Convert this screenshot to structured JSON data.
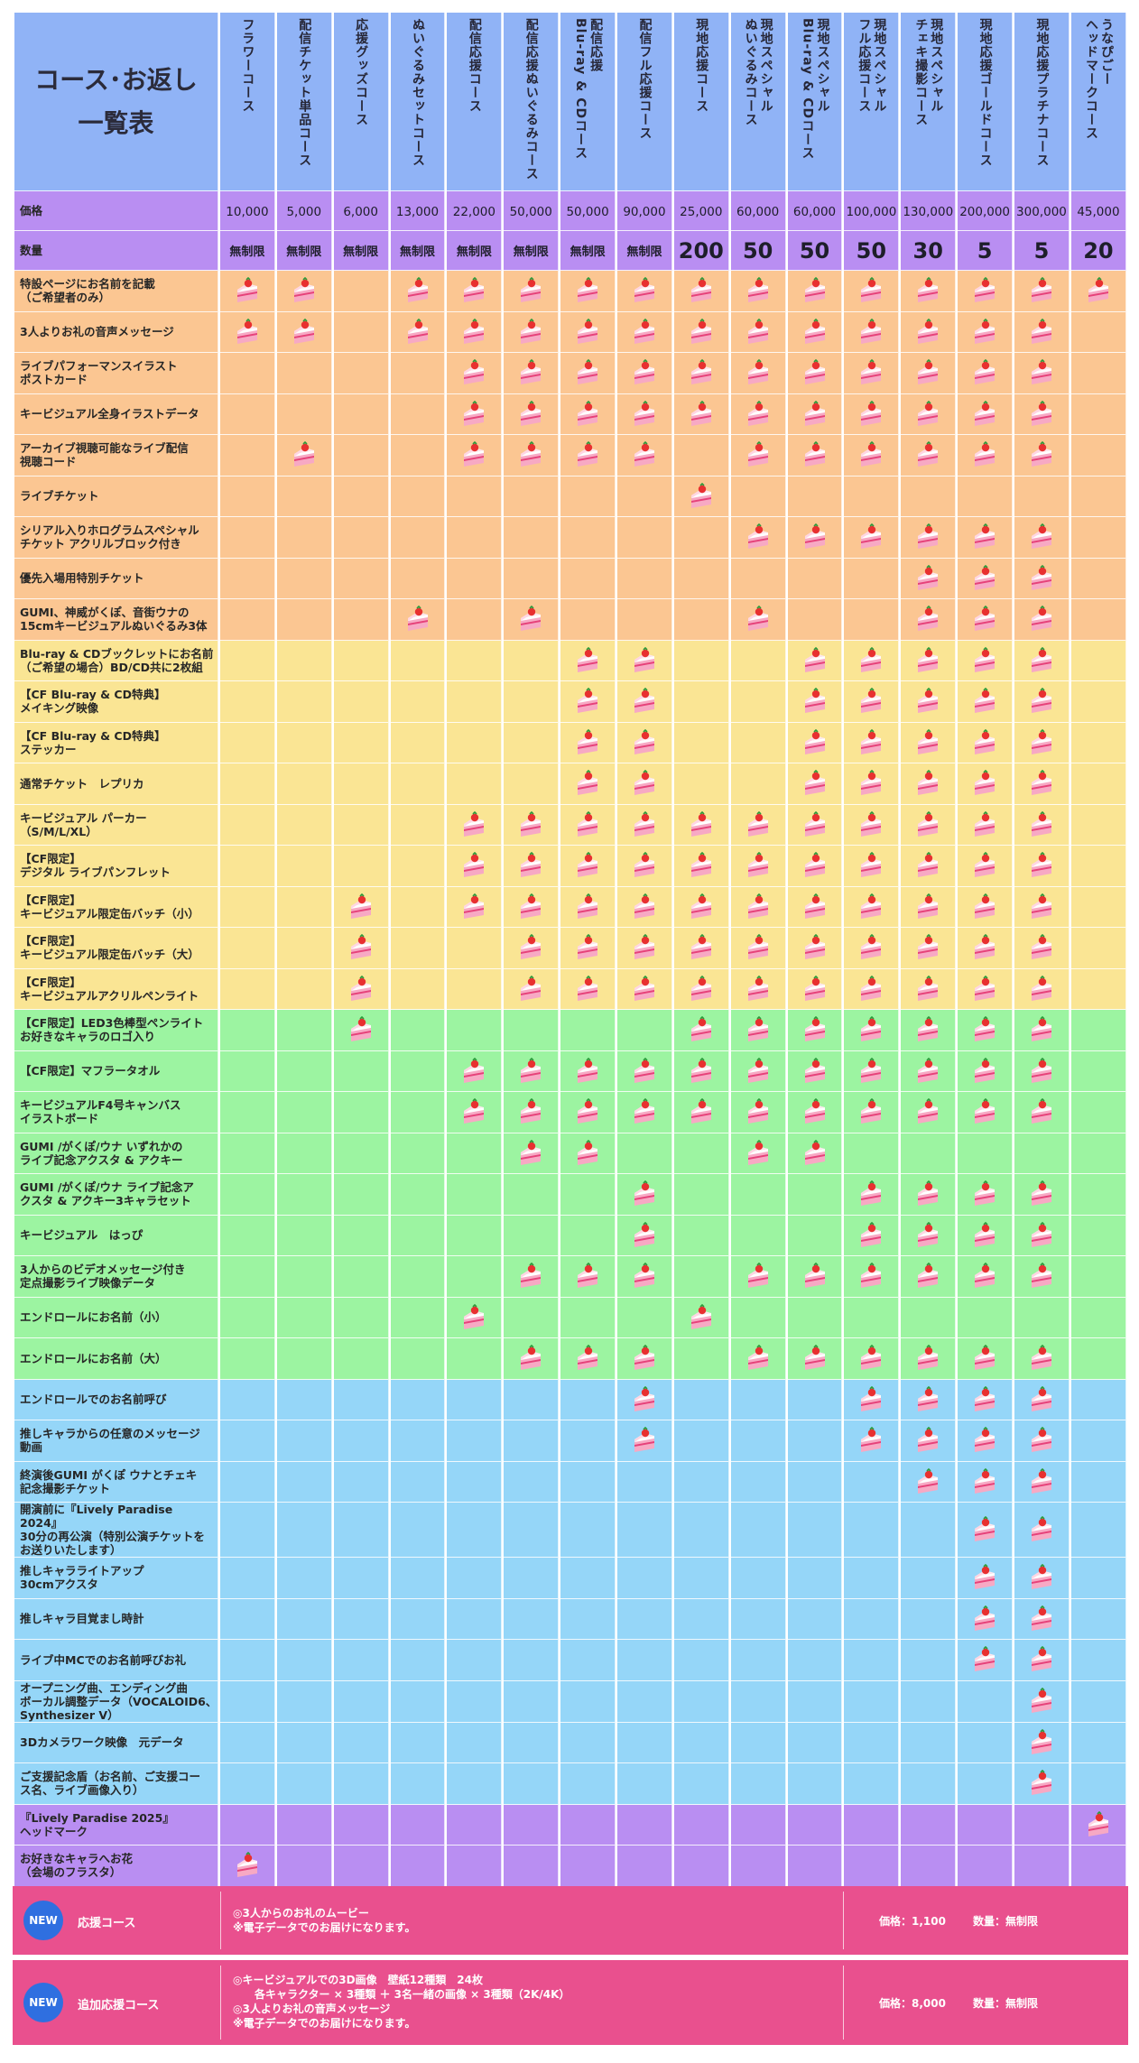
{
  "title": "コース･お返し\n一覧表",
  "courses": [
    "フラワーコース",
    "配信チケット単品コース",
    "応援グッズコース",
    "ぬいぐるみセットコース",
    "配信応援コース",
    "配信応援ぬいぐるみコース",
    "配信応援\nBlu-ray & CDコース",
    "配信フル応援コース",
    "現地応援コース",
    "現地スペシャル\nぬいぐるみコース",
    "現地スペシャル\nBlu-ray & CDコース",
    "現地スペシャル\nフル応援コース",
    "現地スペシャル\nチェキ撮影コース",
    "現地応援ゴールドコース",
    "現地応援プラチナコース",
    "うなぴごー\nヘッドマークコース"
  ],
  "price_label": "価格",
  "prices": [
    "10,000",
    "5,000",
    "6,000",
    "13,000",
    "22,000",
    "50,000",
    "50,000",
    "90,000",
    "25,000",
    "60,000",
    "60,000",
    "100,000",
    "130,000",
    "200,000",
    "300,000",
    "45,000"
  ],
  "qty_label": "数量",
  "quantities": [
    "無制限",
    "無制限",
    "無制限",
    "無制限",
    "無制限",
    "無制限",
    "無制限",
    "無制限",
    "200",
    "50",
    "50",
    "50",
    "30",
    "5",
    "5",
    "20"
  ],
  "rows": [
    {
      "label": "特設ページにお名前を記載\n（ご希望者のみ）",
      "color": "orange",
      "marks": [
        1,
        1,
        0,
        1,
        1,
        1,
        1,
        1,
        1,
        1,
        1,
        1,
        1,
        1,
        1,
        1
      ]
    },
    {
      "label": "3人よりお礼の音声メッセージ",
      "color": "orange",
      "marks": [
        1,
        1,
        0,
        1,
        1,
        1,
        1,
        1,
        1,
        1,
        1,
        1,
        1,
        1,
        1,
        0
      ]
    },
    {
      "label": "ライブパフォーマンスイラスト\nポストカード",
      "color": "orange",
      "marks": [
        0,
        0,
        0,
        0,
        1,
        1,
        1,
        1,
        1,
        1,
        1,
        1,
        1,
        1,
        1,
        0
      ]
    },
    {
      "label": "キービジュアル全身イラストデータ",
      "color": "orange",
      "marks": [
        0,
        0,
        0,
        0,
        1,
        1,
        1,
        1,
        1,
        1,
        1,
        1,
        1,
        1,
        1,
        0
      ]
    },
    {
      "label": "アーカイブ視聴可能なライブ配信\n視聴コード",
      "color": "orange",
      "marks": [
        0,
        1,
        0,
        0,
        1,
        1,
        1,
        1,
        0,
        1,
        1,
        1,
        1,
        1,
        1,
        0
      ]
    },
    {
      "label": "ライブチケット",
      "color": "orange",
      "marks": [
        0,
        0,
        0,
        0,
        0,
        0,
        0,
        0,
        1,
        0,
        0,
        0,
        0,
        0,
        0,
        0
      ]
    },
    {
      "label": "シリアル入りホログラムスペシャル\nチケット アクリルブロック付き",
      "color": "orange",
      "marks": [
        0,
        0,
        0,
        0,
        0,
        0,
        0,
        0,
        0,
        1,
        1,
        1,
        1,
        1,
        1,
        0
      ]
    },
    {
      "label": "優先入場用特別チケット",
      "color": "orange",
      "marks": [
        0,
        0,
        0,
        0,
        0,
        0,
        0,
        0,
        0,
        0,
        0,
        0,
        1,
        1,
        1,
        0
      ]
    },
    {
      "label": "GUMI、神威がくぽ、音街ウナの\n15cmキービジュアルぬいぐるみ3体",
      "color": "orange",
      "marks": [
        0,
        0,
        0,
        1,
        0,
        1,
        0,
        0,
        0,
        1,
        0,
        0,
        1,
        1,
        1,
        0
      ]
    },
    {
      "label": "Blu-ray & CDブックレットにお名前\n（ご希望の場合）BD/CD共に2枚組",
      "color": "yellow",
      "marks": [
        0,
        0,
        0,
        0,
        0,
        0,
        1,
        1,
        0,
        0,
        1,
        1,
        1,
        1,
        1,
        0
      ]
    },
    {
      "label": "【CF Blu-ray & CD特典】\nメイキング映像",
      "color": "yellow",
      "marks": [
        0,
        0,
        0,
        0,
        0,
        0,
        1,
        1,
        0,
        0,
        1,
        1,
        1,
        1,
        1,
        0
      ]
    },
    {
      "label": "【CF Blu-ray & CD特典】\nステッカー",
      "color": "yellow",
      "marks": [
        0,
        0,
        0,
        0,
        0,
        0,
        1,
        1,
        0,
        0,
        1,
        1,
        1,
        1,
        1,
        0
      ]
    },
    {
      "label": "通常チケット　レプリカ",
      "color": "yellow",
      "marks": [
        0,
        0,
        0,
        0,
        0,
        0,
        1,
        1,
        0,
        0,
        1,
        1,
        1,
        1,
        1,
        0
      ]
    },
    {
      "label": "キービジュアル パーカー\n（S/M/L/XL）",
      "color": "yellow",
      "marks": [
        0,
        0,
        0,
        0,
        1,
        1,
        1,
        1,
        1,
        1,
        1,
        1,
        1,
        1,
        1,
        0
      ]
    },
    {
      "label": "【CF限定】\nデジタル ライブパンフレット",
      "color": "yellow",
      "marks": [
        0,
        0,
        0,
        0,
        1,
        1,
        1,
        1,
        1,
        1,
        1,
        1,
        1,
        1,
        1,
        0
      ]
    },
    {
      "label": "【CF限定】\nキービジュアル限定缶バッチ（小）",
      "color": "yellow",
      "marks": [
        0,
        0,
        1,
        0,
        1,
        1,
        1,
        1,
        1,
        1,
        1,
        1,
        1,
        1,
        1,
        0
      ]
    },
    {
      "label": "【CF限定】\nキービジュアル限定缶バッチ（大）",
      "color": "yellow",
      "marks": [
        0,
        0,
        1,
        0,
        0,
        1,
        1,
        1,
        1,
        1,
        1,
        1,
        1,
        1,
        1,
        0
      ]
    },
    {
      "label": "【CF限定】\nキービジュアルアクリルペンライト",
      "color": "yellow",
      "marks": [
        0,
        0,
        1,
        0,
        0,
        1,
        1,
        1,
        1,
        1,
        1,
        1,
        1,
        1,
        1,
        0
      ]
    },
    {
      "label": "【CF限定】LED3色棒型ペンライト\nお好きなキャラのロゴ入り",
      "color": "green",
      "marks": [
        0,
        0,
        1,
        0,
        0,
        0,
        0,
        0,
        1,
        1,
        1,
        1,
        1,
        1,
        1,
        0
      ]
    },
    {
      "label": "【CF限定】マフラータオル",
      "color": "green",
      "marks": [
        0,
        0,
        0,
        0,
        1,
        1,
        1,
        1,
        1,
        1,
        1,
        1,
        1,
        1,
        1,
        0
      ]
    },
    {
      "label": "キービジュアルF4号キャンバス\nイラストボード",
      "color": "green",
      "marks": [
        0,
        0,
        0,
        0,
        1,
        1,
        1,
        1,
        1,
        1,
        1,
        1,
        1,
        1,
        1,
        0
      ]
    },
    {
      "label": "GUMI /がくぽ/ウナ いずれかの\nライブ記念アクスタ & アクキー",
      "color": "green",
      "marks": [
        0,
        0,
        0,
        0,
        0,
        1,
        1,
        0,
        0,
        1,
        1,
        0,
        0,
        0,
        0,
        0
      ]
    },
    {
      "label": "GUMI /がくぽ/ウナ ライブ記念ア\nクスタ & アクキー3キャラセット",
      "color": "green",
      "marks": [
        0,
        0,
        0,
        0,
        0,
        0,
        0,
        1,
        0,
        0,
        0,
        1,
        1,
        1,
        1,
        0
      ]
    },
    {
      "label": "キービジュアル　はっぴ",
      "color": "green",
      "marks": [
        0,
        0,
        0,
        0,
        0,
        0,
        0,
        1,
        0,
        0,
        0,
        1,
        1,
        1,
        1,
        0
      ]
    },
    {
      "label": "3人からのビデオメッセージ付き\n定点撮影ライブ映像データ",
      "color": "green",
      "marks": [
        0,
        0,
        0,
        0,
        0,
        1,
        1,
        1,
        0,
        1,
        1,
        1,
        1,
        1,
        1,
        0
      ]
    },
    {
      "label": "エンドロールにお名前（小）",
      "color": "green",
      "marks": [
        0,
        0,
        0,
        0,
        1,
        0,
        0,
        0,
        1,
        0,
        0,
        0,
        0,
        0,
        0,
        0
      ]
    },
    {
      "label": "エンドロールにお名前（大）",
      "color": "green",
      "marks": [
        0,
        0,
        0,
        0,
        0,
        1,
        1,
        1,
        0,
        1,
        1,
        1,
        1,
        1,
        1,
        0
      ]
    },
    {
      "label": "エンドロールでのお名前呼び",
      "color": "blue",
      "marks": [
        0,
        0,
        0,
        0,
        0,
        0,
        0,
        1,
        0,
        0,
        0,
        1,
        1,
        1,
        1,
        0
      ]
    },
    {
      "label": "推しキャラからの任意のメッセージ\n動画",
      "color": "blue",
      "marks": [
        0,
        0,
        0,
        0,
        0,
        0,
        0,
        1,
        0,
        0,
        0,
        1,
        1,
        1,
        1,
        0
      ]
    },
    {
      "label": "終演後GUMI がくぽ ウナとチェキ\n記念撮影チケット",
      "color": "blue",
      "marks": [
        0,
        0,
        0,
        0,
        0,
        0,
        0,
        0,
        0,
        0,
        0,
        0,
        1,
        1,
        1,
        0
      ]
    },
    {
      "label": "開演前に『Lively Paradise 2024』\n30分の再公演（特別公演チケットを\nお送りいたします）",
      "color": "blue",
      "marks": [
        0,
        0,
        0,
        0,
        0,
        0,
        0,
        0,
        0,
        0,
        0,
        0,
        0,
        1,
        1,
        0
      ]
    },
    {
      "label": "推しキャラライトアップ\n30cmアクスタ",
      "color": "blue",
      "marks": [
        0,
        0,
        0,
        0,
        0,
        0,
        0,
        0,
        0,
        0,
        0,
        0,
        0,
        1,
        1,
        0
      ]
    },
    {
      "label": "推しキャラ目覚まし時計",
      "color": "blue",
      "marks": [
        0,
        0,
        0,
        0,
        0,
        0,
        0,
        0,
        0,
        0,
        0,
        0,
        0,
        1,
        1,
        0
      ]
    },
    {
      "label": "ライブ中MCでのお名前呼びお礼",
      "color": "blue",
      "marks": [
        0,
        0,
        0,
        0,
        0,
        0,
        0,
        0,
        0,
        0,
        0,
        0,
        0,
        1,
        1,
        0
      ]
    },
    {
      "label": "オープニング曲、エンディング曲\nボーカル調整データ（VOCALOID6、\nSynthesizer V）",
      "color": "blue",
      "marks": [
        0,
        0,
        0,
        0,
        0,
        0,
        0,
        0,
        0,
        0,
        0,
        0,
        0,
        0,
        1,
        0
      ]
    },
    {
      "label": "3Dカメラワーク映像　元データ",
      "color": "blue",
      "marks": [
        0,
        0,
        0,
        0,
        0,
        0,
        0,
        0,
        0,
        0,
        0,
        0,
        0,
        0,
        1,
        0
      ]
    },
    {
      "label": "ご支援記念盾（お名前、ご支援コー\nス名、ライブ画像入り）",
      "color": "blue",
      "marks": [
        0,
        0,
        0,
        0,
        0,
        0,
        0,
        0,
        0,
        0,
        0,
        0,
        0,
        0,
        1,
        0
      ]
    },
    {
      "label": "『Lively Paradise 2025』\nヘッドマーク",
      "color": "purple",
      "marks": [
        0,
        0,
        0,
        0,
        0,
        0,
        0,
        0,
        0,
        0,
        0,
        0,
        0,
        0,
        0,
        1
      ]
    },
    {
      "label": "お好きなキャラへお花\n（会場のフラスタ）",
      "color": "purple",
      "marks": [
        1,
        0,
        0,
        0,
        0,
        0,
        0,
        0,
        0,
        0,
        0,
        0,
        0,
        0,
        0,
        0
      ]
    }
  ],
  "extra_plans": [
    {
      "badge": "NEW",
      "name": "応援コース",
      "desc": "◎3人からのお礼のムービー\n※電子データでのお届けになります。",
      "price": "価格：1,100",
      "qty": "数量：無制限"
    },
    {
      "badge": "NEW",
      "name": "追加応援コース",
      "desc": "◎キービジュアルでの3D画像　壁紙12種類　24枚\n　　各キャラクター × 3種類 ＋ 3名一緒の画像 × 3種類（2K/4K）\n◎3人よりお礼の音声メッセージ\n※電子データでのお届けになります。",
      "price": "価格：8,000",
      "qty": "数量：無制限"
    }
  ],
  "colors": {
    "header": "#90b3f6",
    "price_row": "#b98ef2",
    "orange": "#fbc692",
    "yellow": "#fae594",
    "green": "#9cf4a1",
    "blue": "#95d6f8",
    "purple": "#b98ef2",
    "pink_box": "#e9508e",
    "new_badge": "#2f6fe0"
  },
  "icons": {
    "mark": "strawberry-cake-icon",
    "badge": "new-badge-icon"
  }
}
